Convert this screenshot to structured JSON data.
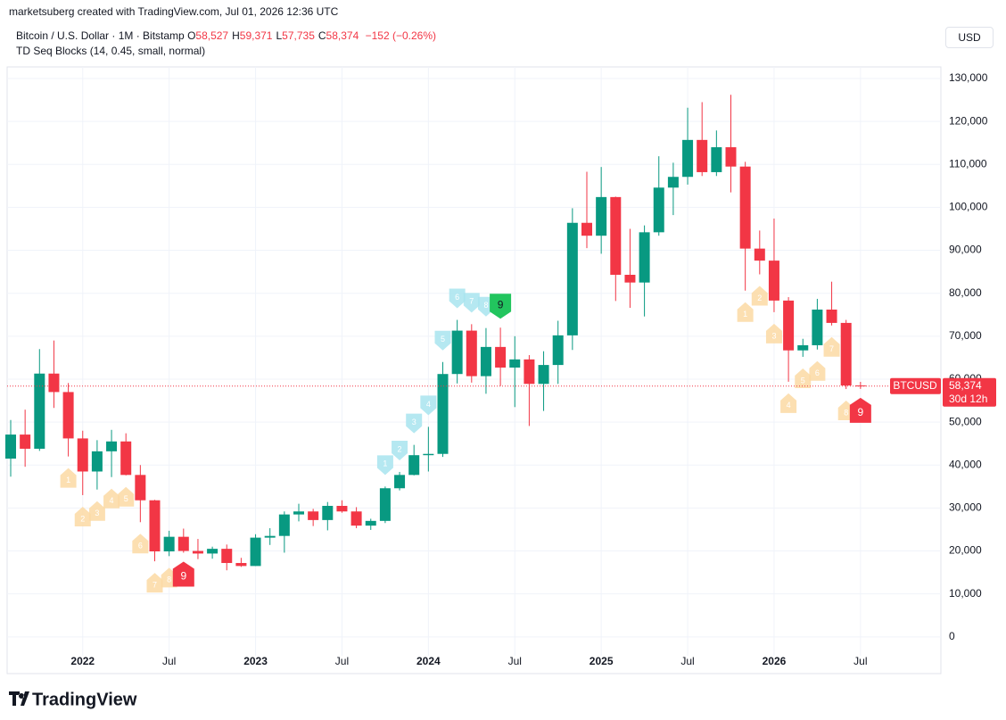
{
  "header": {
    "credit": "marketsuberg created with TradingView.com, Jul 01, 2026 12:36 UTC",
    "symbol": "Bitcoin / U.S. Dollar · 1M · Bitstamp",
    "ohlc": [
      {
        "key": "O",
        "value": "58,527"
      },
      {
        "key": "H",
        "value": "59,371"
      },
      {
        "key": "L",
        "value": "57,735"
      },
      {
        "key": "C",
        "value": "58,374"
      }
    ],
    "change": "−152 (−0.26%)",
    "indicator": "TD Seq Blocks (14, 0.45, small, normal)",
    "currency": "USD",
    "logo": "TradingView"
  },
  "chart_data": {
    "type": "candlestick",
    "categories": [
      "2021-08",
      "2021-09",
      "2021-10",
      "2021-11",
      "2021-12",
      "2022-01",
      "2022-02",
      "2022-03",
      "2022-04",
      "2022-05",
      "2022-06",
      "2022-07",
      "2022-08",
      "2022-09",
      "2022-10",
      "2022-11",
      "2022-12",
      "2023-01",
      "2023-02",
      "2023-03",
      "2023-04",
      "2023-05",
      "2023-06",
      "2023-07",
      "2023-08",
      "2023-09",
      "2023-10",
      "2023-11",
      "2023-12",
      "2024-01",
      "2024-02",
      "2024-03",
      "2024-04",
      "2024-05",
      "2024-06",
      "2024-07",
      "2024-08",
      "2024-09",
      "2024-10",
      "2024-11",
      "2024-12",
      "2025-01",
      "2025-02",
      "2025-03",
      "2025-04",
      "2025-05",
      "2025-06",
      "2025-07",
      "2025-08",
      "2025-09",
      "2025-10",
      "2025-11",
      "2025-12",
      "2026-01",
      "2026-02",
      "2026-03",
      "2026-04",
      "2026-05",
      "2026-06",
      "2026-07"
    ],
    "open": [
      41500,
      47100,
      43800,
      61300,
      57000,
      46200,
      38500,
      43200,
      45500,
      37700,
      31800,
      19900,
      23300,
      20000,
      19400,
      20500,
      17200,
      16500,
      23100,
      23500,
      28500,
      29200,
      27200,
      30500,
      29200,
      25900,
      27000,
      34600,
      37700,
      42300,
      42600,
      61200,
      71300,
      60700,
      67500,
      62700,
      64600,
      58900,
      63300,
      70200,
      96400,
      93400,
      102400,
      84300,
      82500,
      94200,
      104600,
      107100,
      115700,
      108200,
      114000,
      109500,
      90400,
      87600,
      78300,
      66700,
      67900,
      76200,
      73100,
      58527
    ],
    "high": [
      50500,
      52900,
      67000,
      69000,
      59100,
      48000,
      45800,
      48200,
      47400,
      40000,
      31900,
      24700,
      25200,
      22800,
      21000,
      21500,
      18400,
      23900,
      25300,
      29200,
      31000,
      29800,
      31400,
      31800,
      30200,
      27500,
      35000,
      38400,
      44700,
      48900,
      64000,
      73800,
      72800,
      71900,
      72000,
      70000,
      65600,
      66500,
      73600,
      99800,
      108300,
      109400,
      102500,
      95000,
      95800,
      111900,
      110400,
      123200,
      124500,
      117900,
      126200,
      110600,
      94600,
      97400,
      79100,
      69400,
      78700,
      82700,
      73800,
      59371
    ],
    "low": [
      37300,
      39600,
      43300,
      53300,
      42000,
      33000,
      34300,
      37200,
      37600,
      26700,
      17600,
      18800,
      19600,
      18100,
      18200,
      15500,
      16300,
      16500,
      21400,
      19600,
      26900,
      25800,
      24800,
      28900,
      25300,
      24900,
      26500,
      34100,
      37600,
      38500,
      41900,
      59000,
      59200,
      56600,
      58400,
      53500,
      49100,
      52600,
      58900,
      66800,
      90500,
      89200,
      78200,
      76600,
      74600,
      93400,
      98200,
      105300,
      107300,
      107300,
      103500,
      80600,
      84400,
      75600,
      59400,
      65200,
      66900,
      72500,
      57700,
      57735
    ],
    "close": [
      47100,
      43800,
      61300,
      57000,
      46200,
      38500,
      43200,
      45500,
      37700,
      31800,
      19900,
      23300,
      20000,
      19400,
      20500,
      17200,
      16500,
      23100,
      23500,
      28500,
      29200,
      27200,
      30500,
      29200,
      25900,
      27000,
      34600,
      37700,
      42300,
      42600,
      61200,
      71300,
      60700,
      67500,
      62700,
      64600,
      58900,
      63300,
      70200,
      96400,
      93400,
      102400,
      84300,
      82500,
      94200,
      104600,
      107100,
      115700,
      108200,
      114000,
      109500,
      90400,
      87600,
      78300,
      66700,
      67900,
      76200,
      73100,
      58527,
      58374
    ],
    "up_color": "#089981",
    "down_color": "#f23645",
    "ylim": [
      -4400,
      132700
    ],
    "yticks": [
      {
        "value": 0,
        "label": "0"
      },
      {
        "value": 10000,
        "label": "10,000"
      },
      {
        "value": 20000,
        "label": "20,000"
      },
      {
        "value": 30000,
        "label": "30,000"
      },
      {
        "value": 40000,
        "label": "40,000"
      },
      {
        "value": 50000,
        "label": "50,000"
      },
      {
        "value": 60000,
        "label": "60,000"
      },
      {
        "value": 70000,
        "label": "70,000"
      },
      {
        "value": 80000,
        "label": "80,000"
      },
      {
        "value": 90000,
        "label": "90,000"
      },
      {
        "value": 100000,
        "label": "100,000"
      },
      {
        "value": 110000,
        "label": "110,000"
      },
      {
        "value": 120000,
        "label": "120,000"
      },
      {
        "value": 130000,
        "label": "130,000"
      }
    ],
    "xticks": [
      {
        "value": "2022-01",
        "label": "2022"
      },
      {
        "value": "2022-07",
        "label": "Jul"
      },
      {
        "value": "2023-01",
        "label": "2023"
      },
      {
        "value": "2023-07",
        "label": "Jul"
      },
      {
        "value": "2024-01",
        "label": "2024"
      },
      {
        "value": "2024-07",
        "label": "Jul"
      },
      {
        "value": "2025-01",
        "label": "2025"
      },
      {
        "value": "2025-07",
        "label": "Jul"
      },
      {
        "value": "2026-01",
        "label": "2026"
      },
      {
        "value": "2026-07",
        "label": "Jul"
      }
    ],
    "grid": true,
    "price_tag": {
      "symbol": "BTCUSD",
      "price": "58,374",
      "countdown": "30d 12h"
    },
    "td_seq": [
      {
        "side": "below",
        "color": "#fbd9a3",
        "final_color": "#f23645",
        "x": [
          "2021-12",
          "2022-01",
          "2022-02",
          "2022-03",
          "2022-04",
          "2022-05",
          "2022-06",
          "2022-07",
          "2022-08"
        ],
        "labels": [
          1,
          2,
          3,
          4,
          5,
          6,
          7,
          8,
          9
        ]
      },
      {
        "side": "above",
        "color": "#a8e4ef",
        "final_color": "#22c55e",
        "x": [
          "2023-10",
          "2023-11",
          "2023-12",
          "2024-01",
          "2024-02",
          "2024-03",
          "2024-04",
          "2024-05",
          "2024-06"
        ],
        "labels": [
          1,
          2,
          3,
          4,
          5,
          6,
          7,
          8,
          9
        ]
      },
      {
        "side": "below",
        "color": "#fbd9a3",
        "final_color": "#f23645",
        "x": [
          "2025-11",
          "2025-12",
          "2026-01",
          "2026-02",
          "2026-03",
          "2026-04",
          "2026-05",
          "2026-06",
          "2026-07"
        ],
        "labels": [
          1,
          2,
          3,
          4,
          5,
          6,
          7,
          8,
          9
        ]
      }
    ]
  }
}
